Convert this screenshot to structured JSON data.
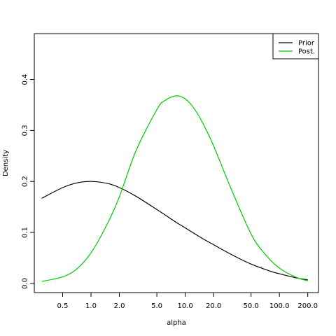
{
  "chart_data": {
    "type": "line",
    "title": "",
    "xlabel": "alpha",
    "ylabel": "Density",
    "x_scale": "log",
    "xlim": [
      0.25,
      260
    ],
    "ylim": [
      -0.018,
      0.49
    ],
    "x_ticks": [
      0.5,
      1.0,
      2.0,
      5.0,
      10.0,
      20.0,
      50.0,
      100.0,
      200.0
    ],
    "x_tick_labels": [
      "0.5",
      "1.0",
      "2.0",
      "5.0",
      "10.0",
      "20.0",
      "50.0",
      "100.0",
      "200.0"
    ],
    "y_ticks": [
      0.0,
      0.1,
      0.2,
      0.3,
      0.4
    ],
    "y_tick_labels": [
      "0.0",
      "0.1",
      "0.2",
      "0.3",
      "0.4"
    ],
    "grid": false,
    "legend_position": "top-right",
    "series": [
      {
        "name": "Prior",
        "color": "#000000",
        "x": [
          0.3,
          0.5,
          0.7,
          1.0,
          1.5,
          2.0,
          3.0,
          5.0,
          8.0,
          10.0,
          15.0,
          20.0,
          30.0,
          50.0,
          80.0,
          100.0,
          150.0,
          200.0
        ],
        "y": [
          0.167,
          0.188,
          0.197,
          0.2,
          0.196,
          0.188,
          0.171,
          0.145,
          0.12,
          0.109,
          0.089,
          0.076,
          0.058,
          0.038,
          0.024,
          0.019,
          0.011,
          0.007
        ]
      },
      {
        "name": "Post.",
        "color": "#00cc00",
        "x": [
          0.3,
          0.5,
          0.7,
          1.0,
          1.5,
          2.0,
          3.0,
          5.0,
          6.0,
          8.0,
          10.0,
          12.0,
          15.0,
          20.0,
          30.0,
          50.0,
          70.0,
          100.0,
          150.0,
          200.0
        ],
        "y": [
          0.004,
          0.013,
          0.028,
          0.06,
          0.118,
          0.17,
          0.26,
          0.341,
          0.358,
          0.368,
          0.362,
          0.347,
          0.318,
          0.27,
          0.19,
          0.097,
          0.058,
          0.03,
          0.012,
          0.005
        ]
      }
    ]
  }
}
